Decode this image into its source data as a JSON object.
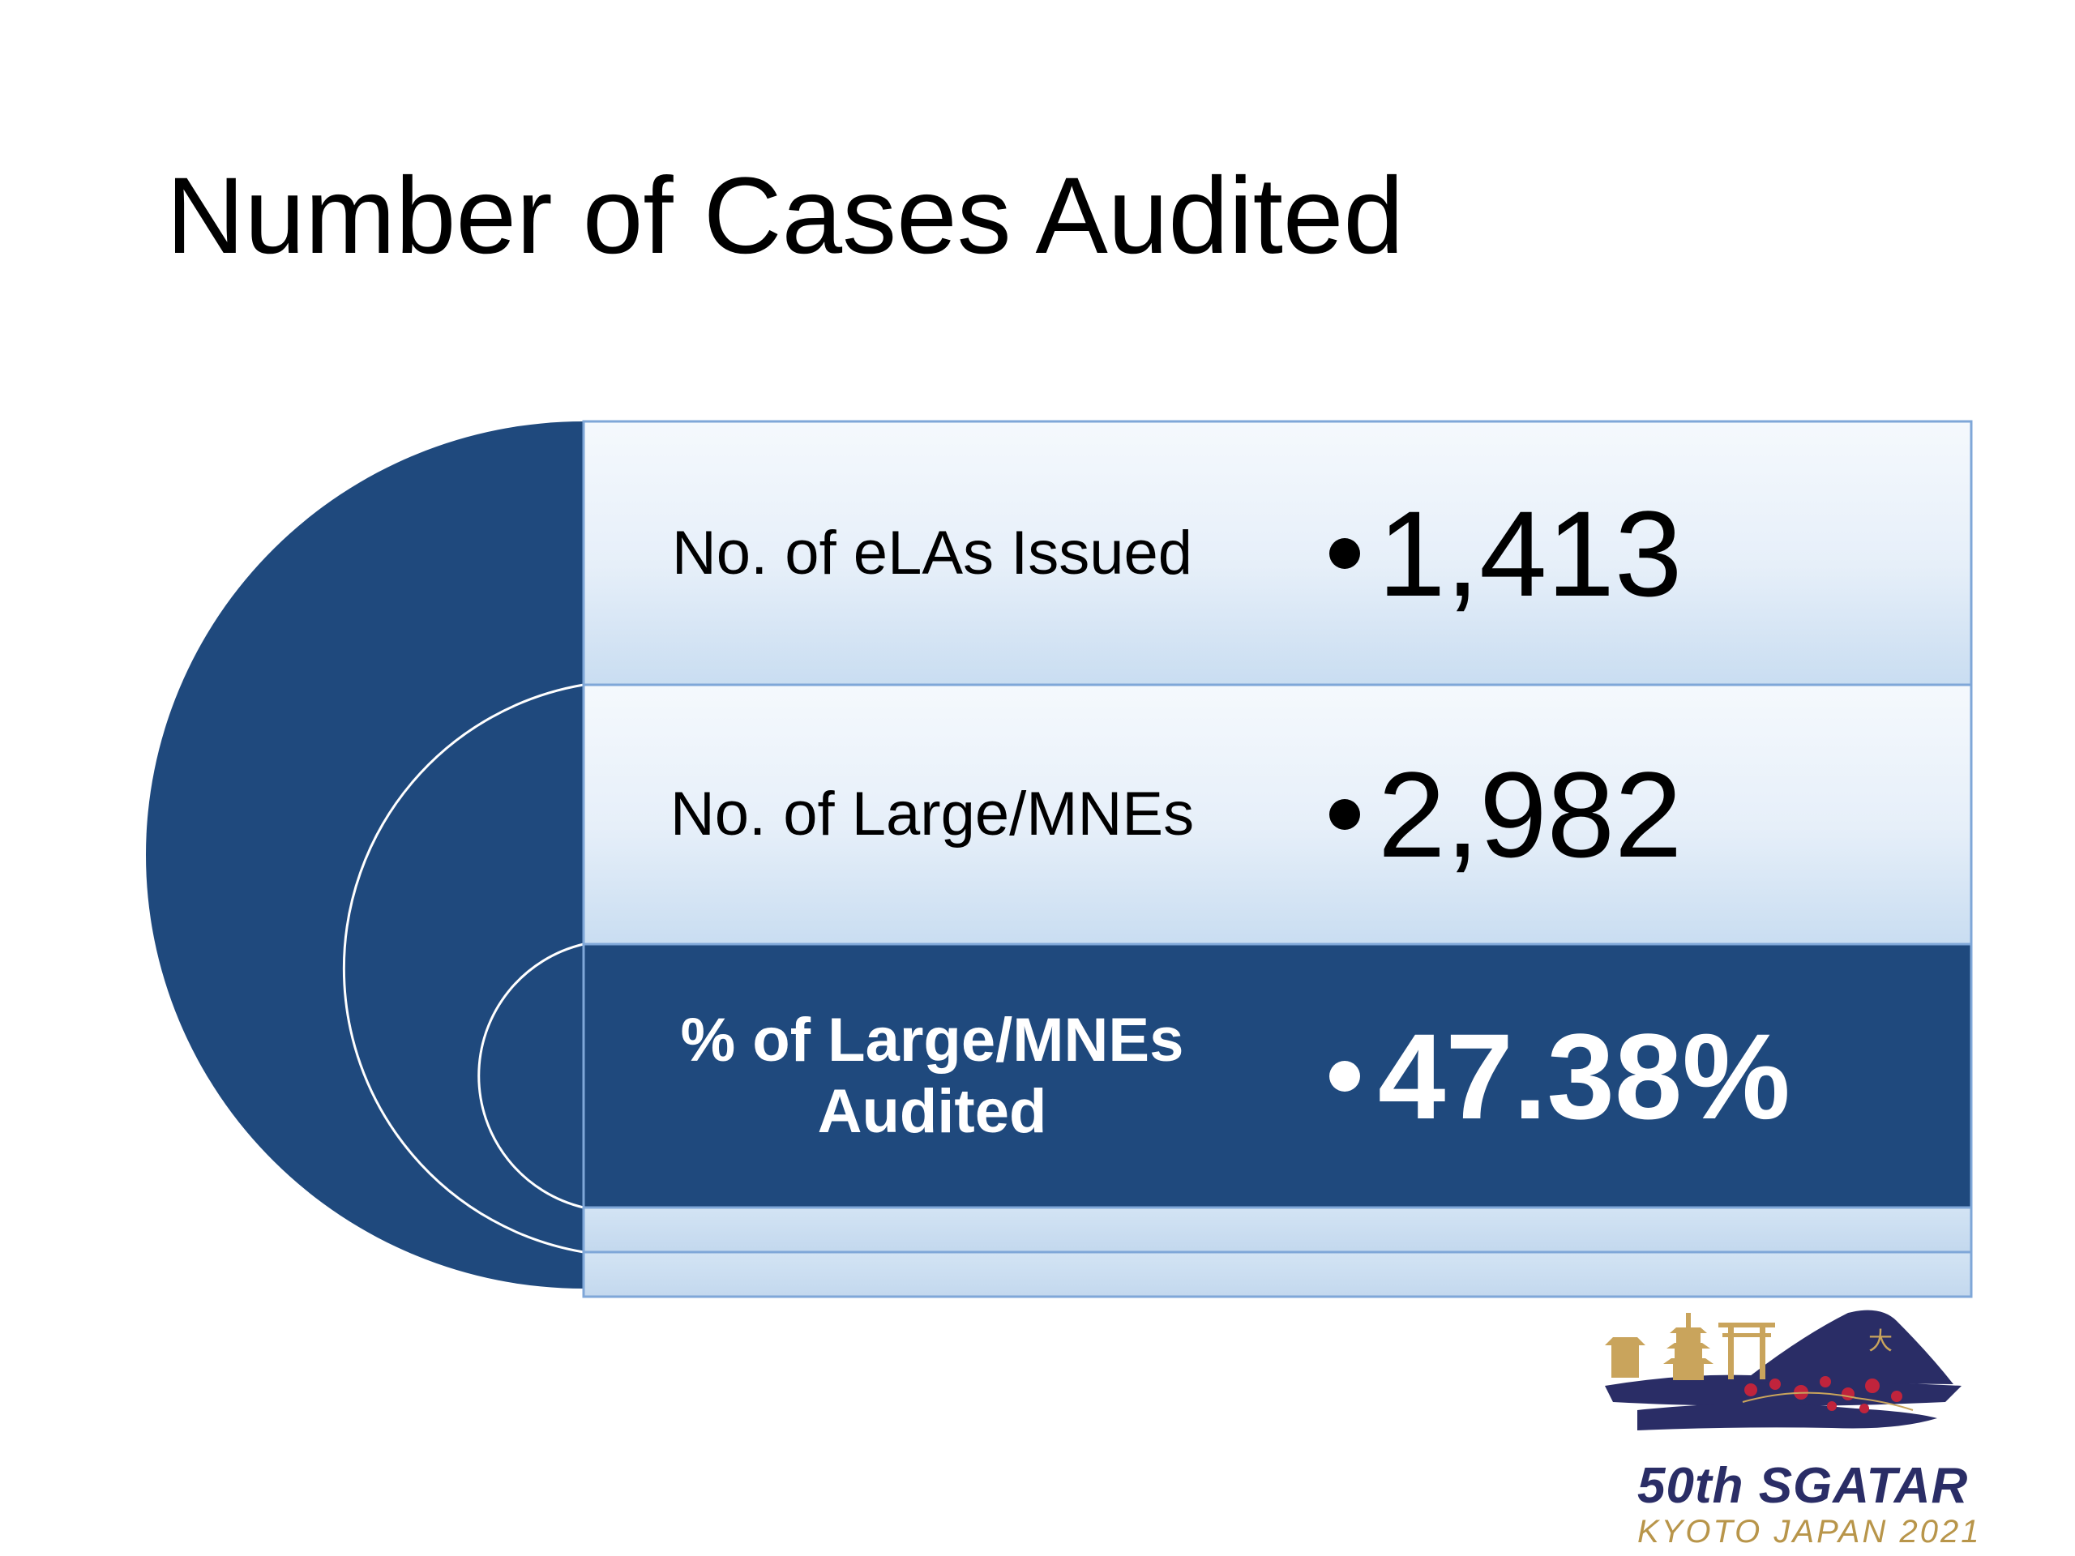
{
  "slide": {
    "title": "Number of Cases Audited"
  },
  "rows": [
    {
      "label": "No. of eLAs Issued",
      "value": "1,413",
      "style": "light-fill"
    },
    {
      "label": "No. of Large/MNEs",
      "value": "2,982",
      "style": "light-fill"
    },
    {
      "label": "% of Large/MNEs Audited",
      "value": "47.38%",
      "style": "dark-fill"
    }
  ],
  "logo": {
    "line1": "50th SGATAR",
    "line2": "KYOTO JAPAN 2021",
    "kanji": "大"
  },
  "colors": {
    "dark_blue": "#1f497d",
    "light_blue_top": "#f3f7fc",
    "light_blue_bottom": "#c7dcf0",
    "border_blue": "#7fa7d8",
    "logo_navy": "#2a2d66",
    "logo_gold": "#c9a45c",
    "logo_red": "#c0243c"
  }
}
